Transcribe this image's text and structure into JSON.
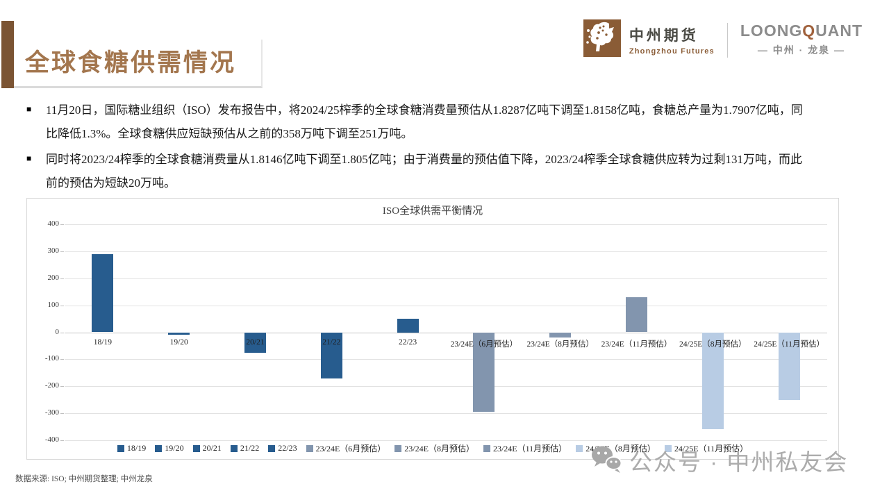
{
  "header": {
    "title": "全球食糖供需情况",
    "logo1": {
      "name": "中州期货",
      "sub": "Zhongzhou Futures"
    },
    "logo2": {
      "part1": "LOONG",
      "part2": "Q",
      "part3": "UANT",
      "sub": "— 中州 · 龙泉 —"
    }
  },
  "bullet_marker": "■",
  "bullets": [
    "11月20日，国际糖业组织（ISO）发布报告中，将2024/25榨季的全球食糖消费量预估从1.8287亿吨下调至1.8158亿吨，食糖总产量为1.7907亿吨，同比降低1.3%。全球食糖供应短缺预估从之前的358万吨下调至251万吨。",
    "同时将2023/24榨季的全球食糖消费量从1.8146亿吨下调至1.805亿吨；由于消费量的预估值下降，2023/24榨季全球食糖供应转为过剩131万吨，而此前的预估为短缺20万吨。"
  ],
  "chart_data": {
    "type": "bar",
    "title": "ISO全球供需平衡情况",
    "categories": [
      "18/19",
      "19/20",
      "20/21",
      "21/22",
      "22/23",
      "23/24E（6月预估）",
      "23/24E（8月预估）",
      "23/24E（11月预估）",
      "24/25E（8月预估）",
      "24/25E（11月预估）"
    ],
    "values": [
      290,
      -10,
      -75,
      -170,
      50,
      -295,
      -20,
      131,
      -358,
      -251
    ],
    "bar_colors": [
      "#275C8E",
      "#275C8E",
      "#275C8E",
      "#275C8E",
      "#275C8E",
      "#8295AE",
      "#8295AE",
      "#8295AE",
      "#B8CCE4",
      "#B8CCE4"
    ],
    "xlabel": "",
    "ylabel": "",
    "ylim": [
      -400,
      400
    ],
    "ytick_step": 100,
    "grid": true,
    "legend_position": "bottom"
  },
  "footer": {
    "source": "数据来源: ISO; 中州期货整理; 中州龙泉"
  },
  "watermark": {
    "text": "公众号 · 中州私友会"
  },
  "colors": {
    "accent_bar": "#7B5433",
    "title_text": "#A3764E",
    "logo_brown": "#8A5C36",
    "loong_q": "#A0613C",
    "dark_blue": "#275C8E",
    "gray_blue": "#8295AE",
    "light_blue": "#B8CCE4",
    "watermark_gray": "#ACACAC"
  }
}
